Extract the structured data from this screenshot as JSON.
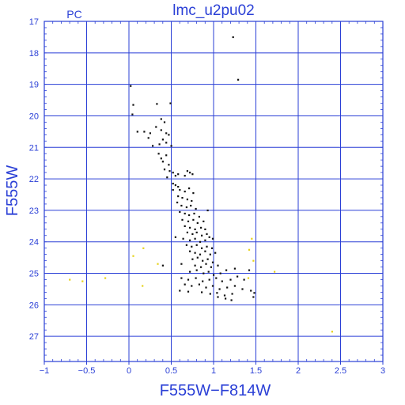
{
  "chart_data": {
    "type": "scatter",
    "title": "lmc_u2pu02",
    "corner_label": "PC",
    "xlabel": "F555W−F814W",
    "ylabel": "F555W",
    "xlim": [
      -1,
      3
    ],
    "ylim": [
      27.8,
      17
    ],
    "y_inverted": true,
    "grid": true,
    "x_ticks": [
      -1,
      -0.5,
      0,
      0.5,
      1,
      1.5,
      2,
      2.5,
      3
    ],
    "x_tick_labels": [
      "−1",
      "−0.5",
      "0",
      "0.5",
      "1",
      "1.5",
      "2",
      "2.5",
      "3"
    ],
    "y_ticks": [
      17,
      18,
      19,
      20,
      21,
      22,
      23,
      24,
      25,
      26,
      27
    ],
    "y_tick_labels": [
      "17",
      "18",
      "19",
      "20",
      "21",
      "22",
      "23",
      "24",
      "25",
      "26",
      "27"
    ],
    "colors": {
      "axes": "#2a3fd6",
      "grid": "#2a3fd6",
      "text": "#2a3fd6"
    },
    "series": [
      {
        "color": "#111111",
        "points": [
          [
            1.23,
            17.5
          ],
          [
            1.29,
            18.85
          ],
          [
            0.02,
            19.05
          ],
          [
            0.05,
            19.65
          ],
          [
            0.33,
            19.62
          ],
          [
            0.49,
            19.6
          ],
          [
            0.04,
            19.95
          ],
          [
            0.38,
            20.1
          ],
          [
            0.42,
            20.2
          ],
          [
            0.32,
            20.35
          ],
          [
            0.1,
            20.5
          ],
          [
            0.18,
            20.5
          ],
          [
            0.25,
            20.55
          ],
          [
            0.38,
            20.45
          ],
          [
            0.44,
            20.55
          ],
          [
            0.47,
            20.6
          ],
          [
            0.23,
            20.7
          ],
          [
            0.4,
            20.75
          ],
          [
            0.28,
            20.95
          ],
          [
            0.36,
            20.9
          ],
          [
            0.44,
            20.85
          ],
          [
            0.5,
            20.95
          ],
          [
            0.35,
            21.2
          ],
          [
            0.44,
            21.25
          ],
          [
            0.38,
            21.35
          ],
          [
            0.4,
            21.45
          ],
          [
            0.47,
            21.55
          ],
          [
            0.42,
            21.7
          ],
          [
            0.48,
            21.75
          ],
          [
            0.52,
            21.8
          ],
          [
            0.45,
            21.95
          ],
          [
            0.55,
            21.9
          ],
          [
            0.58,
            21.85
          ],
          [
            0.66,
            21.9
          ],
          [
            0.69,
            21.75
          ],
          [
            0.72,
            21.8
          ],
          [
            0.75,
            21.85
          ],
          [
            0.52,
            22.15
          ],
          [
            0.55,
            22.2
          ],
          [
            0.58,
            22.25
          ],
          [
            0.52,
            22.35
          ],
          [
            0.6,
            22.35
          ],
          [
            0.66,
            22.4
          ],
          [
            0.71,
            22.3
          ],
          [
            0.76,
            22.45
          ],
          [
            0.58,
            22.55
          ],
          [
            0.63,
            22.6
          ],
          [
            0.69,
            22.65
          ],
          [
            0.74,
            22.7
          ],
          [
            0.57,
            22.75
          ],
          [
            0.62,
            22.85
          ],
          [
            0.68,
            22.9
          ],
          [
            0.73,
            22.85
          ],
          [
            0.79,
            22.95
          ],
          [
            0.6,
            23.05
          ],
          [
            0.66,
            23.1
          ],
          [
            0.71,
            23.15
          ],
          [
            0.77,
            23.1
          ],
          [
            0.83,
            23.2
          ],
          [
            0.93,
            23.0
          ],
          [
            0.63,
            23.3
          ],
          [
            0.7,
            23.35
          ],
          [
            0.76,
            23.3
          ],
          [
            0.81,
            23.4
          ],
          [
            0.88,
            23.35
          ],
          [
            0.66,
            23.5
          ],
          [
            0.72,
            23.55
          ],
          [
            0.78,
            23.6
          ],
          [
            0.85,
            23.55
          ],
          [
            0.9,
            23.6
          ],
          [
            0.69,
            23.7
          ],
          [
            0.75,
            23.75
          ],
          [
            0.8,
            23.7
          ],
          [
            0.86,
            23.8
          ],
          [
            0.92,
            23.75
          ],
          [
            0.55,
            23.85
          ],
          [
            0.64,
            23.9
          ],
          [
            0.72,
            23.95
          ],
          [
            0.78,
            23.9
          ],
          [
            0.84,
            24.0
          ],
          [
            0.9,
            23.95
          ],
          [
            0.95,
            23.85
          ],
          [
            0.99,
            23.9
          ],
          [
            0.68,
            24.1
          ],
          [
            0.74,
            24.15
          ],
          [
            0.8,
            24.1
          ],
          [
            0.86,
            24.2
          ],
          [
            0.92,
            24.15
          ],
          [
            0.98,
            24.2
          ],
          [
            0.72,
            24.3
          ],
          [
            0.78,
            24.35
          ],
          [
            0.84,
            24.4
          ],
          [
            0.9,
            24.3
          ],
          [
            0.96,
            24.4
          ],
          [
            1.02,
            24.35
          ],
          [
            0.75,
            24.55
          ],
          [
            0.81,
            24.5
          ],
          [
            0.87,
            24.6
          ],
          [
            0.93,
            24.55
          ],
          [
            0.99,
            24.65
          ],
          [
            0.4,
            24.75
          ],
          [
            0.62,
            24.7
          ],
          [
            0.78,
            24.75
          ],
          [
            0.85,
            24.8
          ],
          [
            0.91,
            24.7
          ],
          [
            0.97,
            24.8
          ],
          [
            1.05,
            24.75
          ],
          [
            0.72,
            24.95
          ],
          [
            0.8,
            24.9
          ],
          [
            0.88,
            25.0
          ],
          [
            0.94,
            24.95
          ],
          [
            1.0,
            25.05
          ],
          [
            1.08,
            25.0
          ],
          [
            1.15,
            24.9
          ],
          [
            1.25,
            24.85
          ],
          [
            1.42,
            24.9
          ],
          [
            0.62,
            25.15
          ],
          [
            0.7,
            25.2
          ],
          [
            0.79,
            25.15
          ],
          [
            0.87,
            25.25
          ],
          [
            0.95,
            25.2
          ],
          [
            1.03,
            25.15
          ],
          [
            1.1,
            25.25
          ],
          [
            1.2,
            25.2
          ],
          [
            1.28,
            25.1
          ],
          [
            1.36,
            25.2
          ],
          [
            0.66,
            25.35
          ],
          [
            0.74,
            25.4
          ],
          [
            0.83,
            25.35
          ],
          [
            0.91,
            25.45
          ],
          [
            0.99,
            25.4
          ],
          [
            1.07,
            25.5
          ],
          [
            1.16,
            25.45
          ],
          [
            1.25,
            25.4
          ],
          [
            1.34,
            25.5
          ],
          [
            0.6,
            25.55
          ],
          [
            0.7,
            25.58
          ],
          [
            0.86,
            25.6
          ],
          [
            0.96,
            25.65
          ],
          [
            1.04,
            25.62
          ],
          [
            1.13,
            25.7
          ],
          [
            1.22,
            25.65
          ],
          [
            1.44,
            25.55
          ],
          [
            1.48,
            25.62
          ],
          [
            1.05,
            25.75
          ],
          [
            1.14,
            25.8
          ],
          [
            1.21,
            25.85
          ],
          [
            1.47,
            25.75
          ]
        ]
      },
      {
        "color": "#e6d21a",
        "points": [
          [
            -0.7,
            25.2
          ],
          [
            -0.55,
            25.25
          ],
          [
            -0.28,
            25.15
          ],
          [
            0.17,
            24.2
          ],
          [
            0.16,
            25.4
          ],
          [
            0.05,
            24.45
          ],
          [
            0.34,
            24.7
          ],
          [
            1.45,
            23.9
          ],
          [
            1.42,
            24.25
          ],
          [
            1.47,
            24.6
          ],
          [
            1.41,
            25.15
          ],
          [
            1.72,
            24.95
          ],
          [
            2.4,
            26.85
          ]
        ]
      }
    ]
  }
}
